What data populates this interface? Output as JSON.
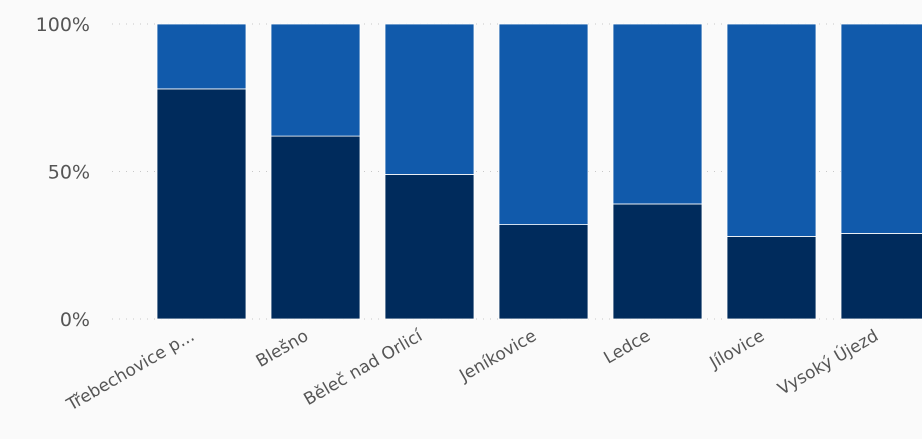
{
  "chart_data": {
    "type": "bar",
    "stacked": "percent",
    "categories": [
      "Třebechovice p...",
      "Blešno",
      "Běleč nad Orlicí",
      "Jeníkovice",
      "Ledce",
      "Jílovice",
      "Vysoký Újezd"
    ],
    "series": [
      {
        "color": "#002b5c",
        "values": [
          78,
          62,
          49,
          32,
          39,
          28,
          29
        ]
      },
      {
        "color": "#115aab",
        "values": [
          22,
          38,
          51,
          68,
          61,
          72,
          71
        ]
      }
    ],
    "y_ticks": [
      "0%",
      "50%",
      "100%"
    ],
    "ylim": [
      0,
      100
    ],
    "grid": true,
    "title": "",
    "xlabel": "",
    "ylabel": ""
  }
}
